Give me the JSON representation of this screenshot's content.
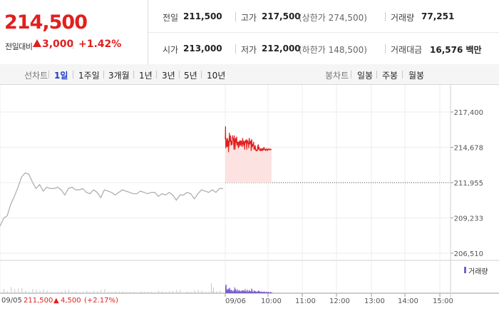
{
  "header": {
    "current_price": "214,500",
    "change_label": "전일대비",
    "change_value": "3,000",
    "change_pct": "+1.42%",
    "cells": {
      "prev_close": {
        "label": "전일",
        "value": "211,500"
      },
      "high": {
        "label": "고가",
        "value": "217,500",
        "sub": "(상한가 274,500)"
      },
      "volume": {
        "label": "거래량",
        "value": "77,251"
      },
      "open": {
        "label": "시가",
        "value": "213,000"
      },
      "low": {
        "label": "저가",
        "value": "212,000",
        "sub": "(하한가 148,500)"
      },
      "trade_value": {
        "label": "거래대금",
        "value": "16,576 백만"
      }
    }
  },
  "toolbar": {
    "line_label": "선차트",
    "line_periods": [
      "1일",
      "1주일",
      "3개월",
      "1년",
      "3년",
      "5년",
      "10년"
    ],
    "active_period": "1일",
    "candle_label": "봉차트",
    "candle_periods": [
      "일봉",
      "주봉",
      "월봉"
    ]
  },
  "colors": {
    "up": "#e0201e",
    "active_tab": "#1e3cc7",
    "prev_line": "#aaaaaa",
    "volume": "#7b5fc9"
  },
  "chart_data": {
    "type": "line",
    "y_ticks": [
      "217,400",
      "214,678",
      "211,955",
      "209,233",
      "206,510"
    ],
    "ylim": [
      206510,
      217400
    ],
    "reference_line": 211955,
    "x_ticks": [
      "09/06",
      "10:00",
      "11:00",
      "12:00",
      "13:00",
      "14:00",
      "15:00"
    ],
    "series": [
      {
        "values_prev_day": [
          208600,
          209200,
          209400,
          210300,
          210900,
          211600,
          212400,
          212700,
          212600,
          212000,
          211500,
          211800,
          211300,
          211600,
          211500,
          211500,
          211600,
          211400,
          211000,
          211500,
          211600,
          211400,
          211400,
          211500,
          211200,
          211100,
          211400,
          211200,
          210800,
          211400,
          211300,
          211200,
          211000,
          211200,
          211400,
          211300,
          211200,
          211100,
          211100,
          211300,
          211200,
          211100,
          211200,
          211200,
          210900,
          211100,
          211000,
          211200,
          211000,
          210600,
          211000,
          211000,
          211200,
          211100,
          210700,
          211100,
          211400,
          211300,
          211200,
          211400,
          211200,
          211500,
          211500
        ],
        "values_today": [
          215300,
          216300,
          214600,
          215400,
          214800,
          215000,
          214700,
          215300,
          214700,
          215400,
          214800,
          215200,
          214300,
          214900,
          214800,
          215800,
          215300,
          215500,
          215100,
          215600,
          215400,
          214800,
          215200,
          215000,
          214900,
          214900,
          215200,
          215600,
          215400,
          215300,
          215400,
          214900,
          214500,
          215600,
          215100,
          215300,
          214500,
          215000,
          215400,
          215200,
          215200,
          215000,
          215500,
          214800,
          215000,
          214900,
          215100,
          215000,
          214600,
          215100,
          214900,
          214700,
          215100,
          215200,
          215000,
          214900,
          214800,
          215200,
          215000,
          215200,
          214800,
          214900,
          214700,
          215100,
          215400,
          214900,
          215200,
          215100,
          214800,
          214900,
          215100,
          214500,
          215200,
          215100,
          215000,
          215200,
          215100,
          215300,
          214900,
          214500,
          215100,
          215200,
          215200,
          215100,
          214900,
          215000,
          214600,
          215100,
          215400,
          215200,
          214900,
          215100,
          215000,
          215000,
          215200,
          214400,
          214600,
          215300,
          215000,
          214800,
          214700,
          214800,
          214900,
          214900,
          215100,
          214600,
          214500,
          214700,
          214500,
          214800,
          214800,
          214600,
          214400,
          214500,
          214400,
          214500,
          214400,
          214400,
          214500,
          214800,
          214500,
          214900,
          214800,
          214500,
          214700,
          214600,
          214500,
          214400,
          214500,
          214400,
          214600,
          214500,
          214400,
          214500,
          214500,
          214600,
          214500,
          214400,
          214500,
          214600,
          214500,
          214500,
          214700,
          214600,
          214500,
          214500,
          214500,
          214500,
          214400,
          214500,
          214600,
          214500,
          214500,
          214500,
          214500,
          214400,
          214500,
          214600,
          214500,
          214500,
          214500,
          214500,
          214500,
          214500,
          214600,
          214500,
          214500,
          214500,
          214500,
          214500,
          214500
        ]
      }
    ],
    "volume_legend": "거래량"
  },
  "footer": {
    "prev_date": "09/05",
    "prev_close": "211,500",
    "prev_change": "4,500",
    "prev_pct": "(+2.17%)"
  }
}
